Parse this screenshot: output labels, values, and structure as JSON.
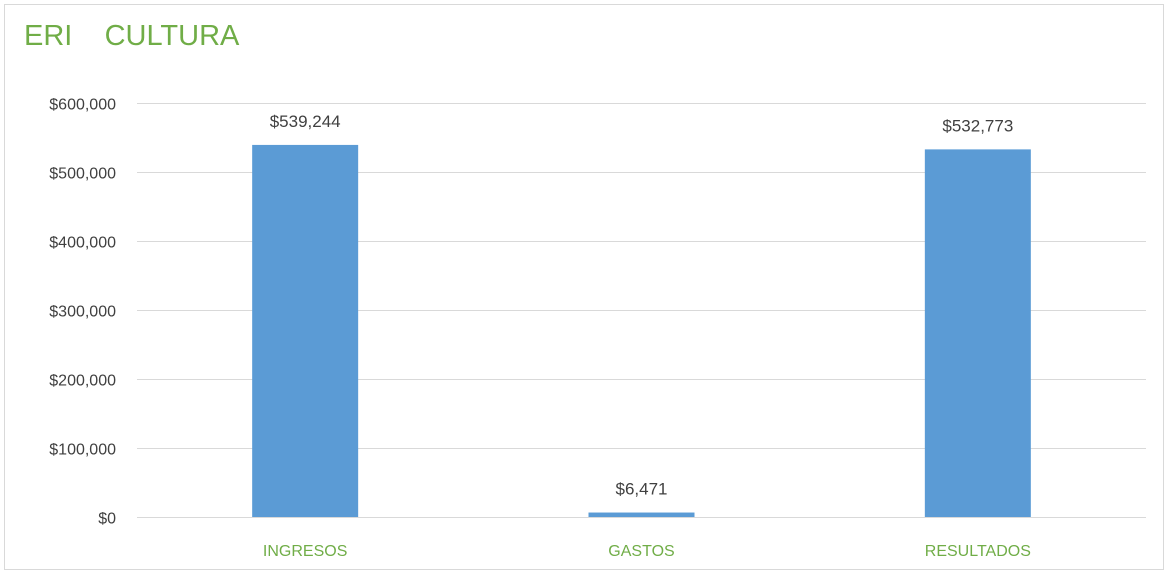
{
  "chart_data": {
    "type": "bar",
    "title": "ERI    CULTURA",
    "categories": [
      "INGRESOS",
      "GASTOS",
      "RESULTADOS"
    ],
    "values": [
      539244,
      6471,
      532773
    ],
    "data_labels": [
      "$539,244",
      "$6,471",
      "$532,773"
    ],
    "ylim": [
      0,
      600000
    ],
    "y_ticks": [
      0,
      100000,
      200000,
      300000,
      400000,
      500000,
      600000
    ],
    "y_tick_labels": [
      "$0",
      "$100,000",
      "$200,000",
      "$300,000",
      "$400,000",
      "$500,000",
      "$600,000"
    ],
    "grid": true,
    "legend": "none",
    "colors": {
      "bar": "#5b9bd5",
      "title": "#70ad47",
      "category_label": "#70ad47",
      "gridline": "#d9d9d9",
      "text": "#404040"
    }
  }
}
